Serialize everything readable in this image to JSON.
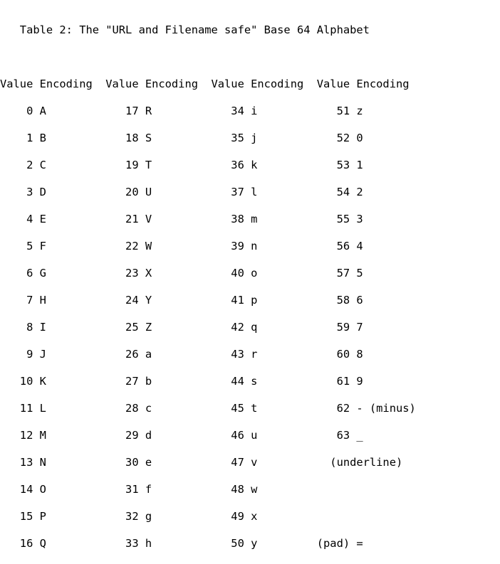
{
  "title": "   Table 2: The \"URL and Filename safe\" Base 64 Alphabet",
  "header": "Value Encoding  Value Encoding  Value Encoding  Value Encoding",
  "rows": [
    "    0 A            17 R            34 i            51 z",
    "    1 B            18 S            35 j            52 0",
    "    2 C            19 T            36 k            53 1",
    "    3 D            20 U            37 l            54 2",
    "    4 E            21 V            38 m            55 3",
    "    5 F            22 W            39 n            56 4",
    "    6 G            23 X            40 o            57 5",
    "    7 H            24 Y            41 p            58 6",
    "    8 I            25 Z            42 q            59 7",
    "    9 J            26 a            43 r            60 8",
    "   10 K            27 b            44 s            61 9",
    "   11 L            28 c            45 t            62 - (minus)",
    "   12 M            29 d            46 u            63 _",
    "   13 N            30 e            47 v           (underline)",
    "   14 O            31 f            48 w",
    "   15 P            32 g            49 x",
    "   16 Q            33 h            50 y         (pad) ="
  ]
}
